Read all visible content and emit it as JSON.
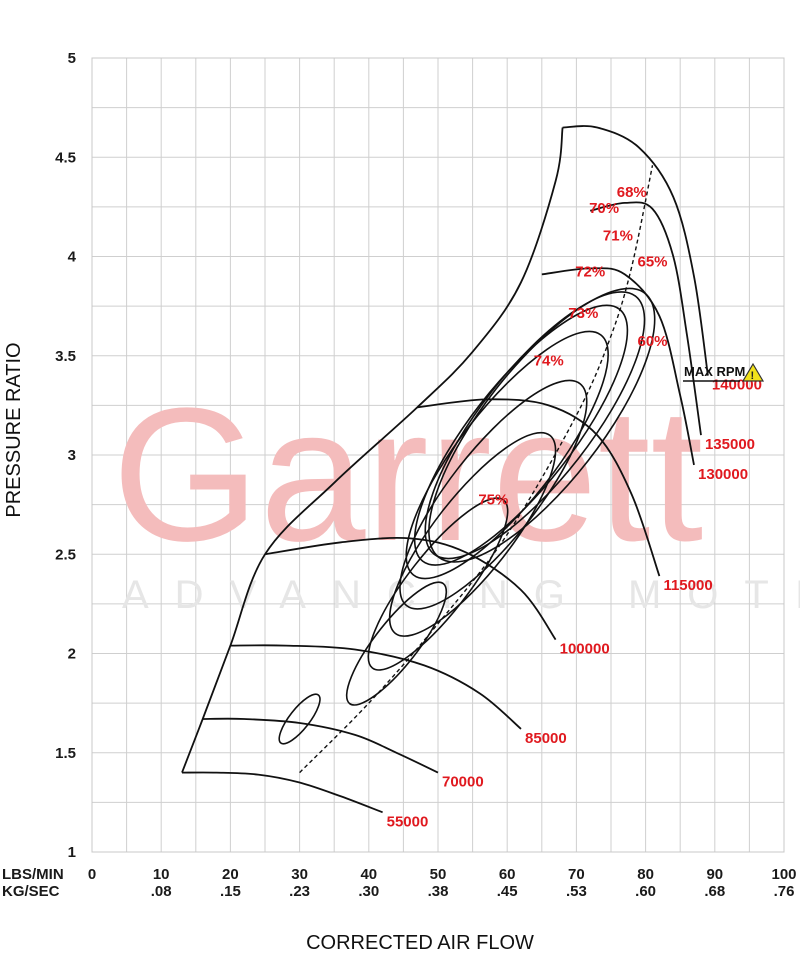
{
  "watermark": {
    "brand": "Garrett",
    "tagline": "ADVANCING MOTION"
  },
  "colors": {
    "label_red": "#e0191f",
    "line": "#111111",
    "grid": "#c8c8c8",
    "warning_yellow": "#f2e21a",
    "watermark": "#f4bcbc"
  },
  "chart_data": {
    "type": "line",
    "title": "",
    "xlabel": "CORRECTED AIR FLOW",
    "ylabel": "PRESSURE RATIO",
    "xlim": [
      0,
      100
    ],
    "ylim": [
      1,
      5
    ],
    "grid": true,
    "x_unit_rows": [
      {
        "label": "LBS/MIN",
        "ticks": [
          "0",
          "10",
          "20",
          "30",
          "40",
          "50",
          "60",
          "70",
          "80",
          "90",
          "100"
        ]
      },
      {
        "label": "KG/SEC",
        "ticks": [
          "",
          ".08",
          ".15",
          ".23",
          ".30",
          ".38",
          ".45",
          ".53",
          ".60",
          ".68",
          ".76"
        ]
      }
    ],
    "y_ticks": [
      "1",
      "1.5",
      "2",
      "2.5",
      "3",
      "3.5",
      "4",
      "4.5",
      "5"
    ],
    "speed_lines": [
      {
        "name": "55000",
        "x": [
          13,
          18,
          24,
          30,
          36,
          42
        ],
        "y": [
          1.4,
          1.4,
          1.39,
          1.35,
          1.28,
          1.2
        ]
      },
      {
        "name": "70000",
        "x": [
          16,
          22,
          30,
          38,
          44,
          50
        ],
        "y": [
          1.67,
          1.67,
          1.65,
          1.59,
          1.5,
          1.4
        ]
      },
      {
        "name": "85000",
        "x": [
          20,
          28,
          38,
          48,
          56,
          62
        ],
        "y": [
          2.04,
          2.04,
          2.02,
          1.94,
          1.8,
          1.62
        ]
      },
      {
        "name": "100000",
        "x": [
          25,
          36,
          46,
          54,
          62,
          67
        ],
        "y": [
          2.5,
          2.56,
          2.58,
          2.51,
          2.32,
          2.07
        ]
      },
      {
        "name": "115000",
        "x": [
          47,
          57,
          66,
          73,
          78,
          82
        ],
        "y": [
          3.24,
          3.28,
          3.25,
          3.1,
          2.8,
          2.39
        ]
      },
      {
        "name": "130000",
        "x": [
          65,
          72,
          77,
          82,
          85,
          87
        ],
        "y": [
          3.91,
          3.94,
          3.91,
          3.7,
          3.3,
          2.95
        ]
      },
      {
        "name": "135000",
        "x": [
          72,
          77,
          81,
          84,
          86,
          88
        ],
        "y": [
          4.23,
          4.27,
          4.24,
          4.0,
          3.6,
          3.1
        ]
      },
      {
        "name": "140000",
        "x": [
          68,
          73,
          79,
          84,
          87,
          89
        ],
        "y": [
          4.65,
          4.65,
          4.55,
          4.3,
          3.9,
          3.4
        ]
      }
    ],
    "surge_line": {
      "x": [
        13,
        16,
        20,
        25,
        35,
        47,
        55,
        62,
        67,
        68
      ],
      "y": [
        1.4,
        1.67,
        2.04,
        2.5,
        2.86,
        3.24,
        3.52,
        3.87,
        4.38,
        4.65
      ]
    },
    "max_efficiency_line": {
      "x": [
        30,
        40,
        50,
        60,
        70,
        75,
        78,
        81
      ],
      "y": [
        1.4,
        1.75,
        2.15,
        2.6,
        3.2,
        3.6,
        3.95,
        4.46
      ]
    },
    "efficiency_islands": [
      {
        "name": "75%",
        "value": 75
      },
      {
        "name": "74%",
        "value": 74
      },
      {
        "name": "73%",
        "value": 73
      },
      {
        "name": "72%",
        "value": 72
      },
      {
        "name": "71%",
        "value": 71
      },
      {
        "name": "70%",
        "value": 70
      },
      {
        "name": "68%",
        "value": 68
      },
      {
        "name": "65%",
        "value": 65
      },
      {
        "name": "60%",
        "value": 60
      }
    ],
    "annotations": [
      {
        "text": "MAX RPM",
        "icon": "warning-icon"
      }
    ]
  }
}
